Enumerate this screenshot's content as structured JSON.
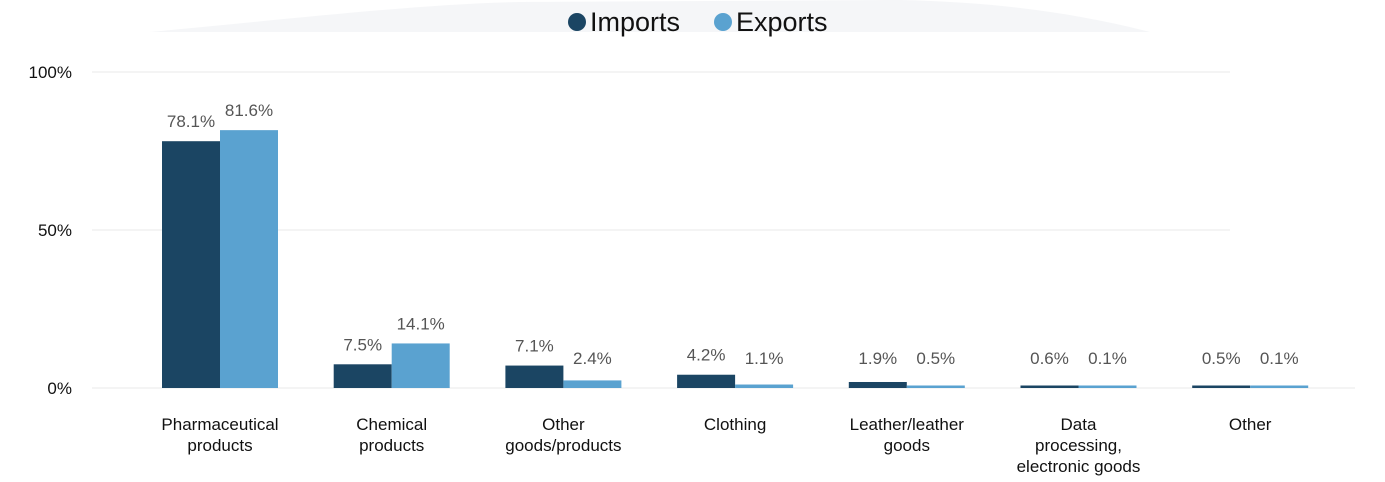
{
  "chart_data": {
    "type": "bar",
    "categories": [
      [
        "Pharmaceutical",
        "products"
      ],
      [
        "Chemical",
        "products"
      ],
      [
        "Other",
        "goods/products"
      ],
      [
        "Clothing"
      ],
      [
        "Leather/leather",
        "goods"
      ],
      [
        "Data",
        "processing,",
        "electronic goods"
      ],
      [
        "Other"
      ]
    ],
    "series": [
      {
        "name": "Imports",
        "color": "#1b4563",
        "values": [
          78.1,
          7.5,
          7.1,
          4.2,
          1.9,
          0.6,
          0.5
        ],
        "labels": [
          "78.1%",
          "7.5%",
          "7.1%",
          "4.2%",
          "1.9%",
          "0.6%",
          "0.5%"
        ]
      },
      {
        "name": "Exports",
        "color": "#5aa2d0",
        "values": [
          81.6,
          14.1,
          2.4,
          1.1,
          0.5,
          0.1,
          0.1
        ],
        "labels": [
          "81.6%",
          "14.1%",
          "2.4%",
          "1.1%",
          "0.5%",
          "0.1%",
          "0.1%"
        ]
      }
    ],
    "yticks": [
      {
        "value": 0,
        "label": "0%"
      },
      {
        "value": 50,
        "label": "50%"
      },
      {
        "value": 100,
        "label": "100%"
      }
    ],
    "ylim": [
      0,
      100
    ],
    "grid": true,
    "legend_position": "top-center"
  }
}
